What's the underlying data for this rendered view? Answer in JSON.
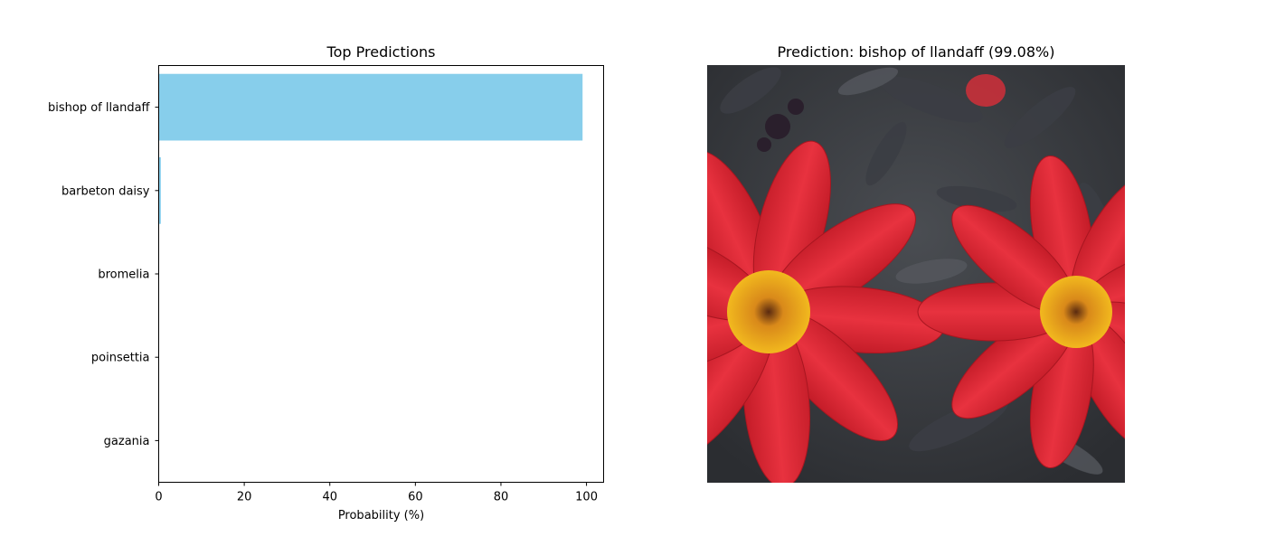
{
  "colors": {
    "bar": "#87ceeb",
    "axes": "#000000",
    "background": "#ffffff"
  },
  "chart_data": [
    {
      "type": "bar",
      "orientation": "horizontal",
      "title": "Top Predictions",
      "xlabel": "Probability (%)",
      "ylabel": "",
      "categories": [
        "bishop of llandaff",
        "barbeton daisy",
        "bromelia",
        "poinsettia",
        "gazania"
      ],
      "values": [
        99.08,
        0.5,
        0.1,
        0.05,
        0.03
      ],
      "xlim": [
        0,
        104
      ],
      "xticks": [
        0,
        20,
        40,
        60,
        80,
        100
      ],
      "grid": false,
      "legend": "none"
    }
  ],
  "image_panel": {
    "title": "Prediction: bishop of llandaff (99.08%)",
    "picture": "two red dahlia flowers with yellow centers on dark foliage"
  }
}
